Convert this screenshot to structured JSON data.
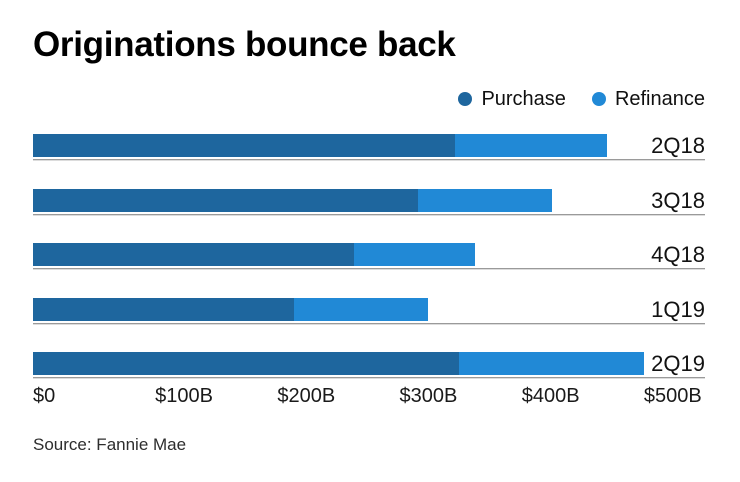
{
  "title": "Originations bounce back",
  "legend": [
    {
      "label": "Purchase",
      "color": "#1e669e"
    },
    {
      "label": "Refinance",
      "color": "#2189d6"
    }
  ],
  "source": "Source: Fannie Mae",
  "chart_data": {
    "type": "bar",
    "orientation": "horizontal",
    "stacked": true,
    "title": "Originations bounce back",
    "categories": [
      "2Q18",
      "3Q18",
      "4Q18",
      "1Q19",
      "2Q19"
    ],
    "series": [
      {
        "name": "Purchase",
        "color": "#1e669e",
        "values": [
          345,
          315,
          263,
          214,
          349
        ]
      },
      {
        "name": "Refinance",
        "color": "#2189d6",
        "values": [
          125,
          110,
          99,
          109,
          151
        ]
      }
    ],
    "totals": [
      470,
      425,
      362,
      323,
      500
    ],
    "units": "billions USD",
    "xlabel": "",
    "ylabel": "",
    "x_ticks": [
      "$0",
      "$100B",
      "$200B",
      "$300B",
      "$400B",
      "$500B"
    ],
    "x_tick_values": [
      0,
      100,
      200,
      300,
      400,
      500
    ],
    "xlim": [
      0,
      550
    ],
    "grid": false,
    "legend_position": "top-right",
    "source_label": "Source: Fannie Mae"
  }
}
